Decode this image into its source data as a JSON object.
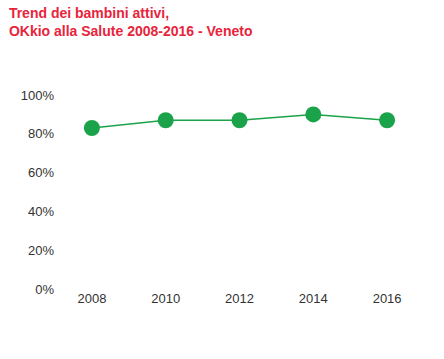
{
  "chart_data": {
    "type": "line",
    "title": "Trend dei bambini attivi,\nOKkio alla Salute 2008-2016 - Veneto",
    "categories": [
      "2008",
      "2010",
      "2012",
      "2014",
      "2016"
    ],
    "values": [
      83,
      87,
      87,
      90,
      87
    ],
    "color": "#1aa34a",
    "marker": "circle",
    "line_style": "solid",
    "ylim": [
      0,
      100
    ],
    "yticks": [
      {
        "value": 0,
        "label": "0%"
      },
      {
        "value": 20,
        "label": "20%"
      },
      {
        "value": 40,
        "label": "40%"
      },
      {
        "value": 60,
        "label": "60%"
      },
      {
        "value": 80,
        "label": "80%"
      },
      {
        "value": 100,
        "label": "100%"
      }
    ],
    "grid": false
  }
}
